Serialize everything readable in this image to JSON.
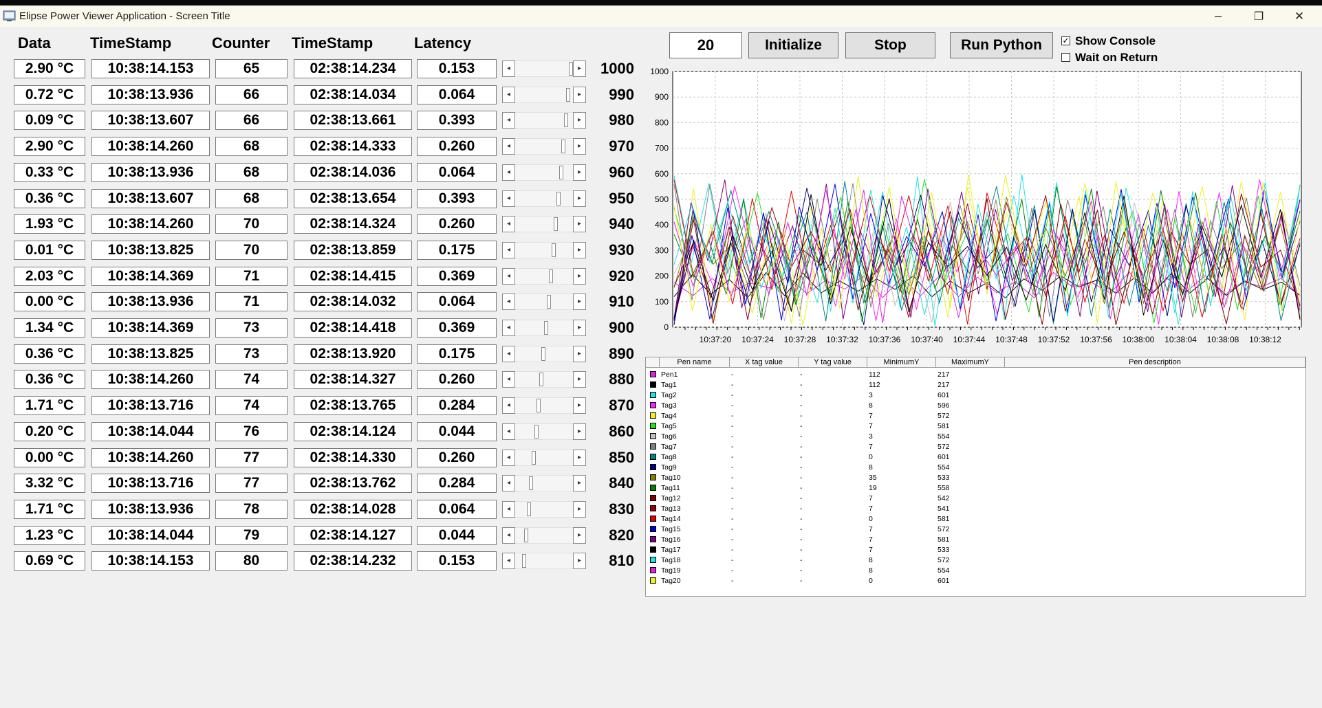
{
  "window": {
    "title": "Elipse Power Viewer Application - Screen Title",
    "minimize_glyph": "–",
    "restore_glyph": "❐",
    "close_glyph": "✕"
  },
  "columns": {
    "data": "Data",
    "timestamp1": "TimeStamp",
    "counter": "Counter",
    "timestamp2": "TimeStamp",
    "latency": "Latency"
  },
  "rows": [
    {
      "data": "2.90 °C",
      "ts1": "10:38:14.153",
      "counter": "65",
      "ts2": "02:38:14.234",
      "latency": "0.153",
      "value": "1000",
      "scroll": 1.0
    },
    {
      "data": "0.72 °C",
      "ts1": "10:38:13.936",
      "counter": "66",
      "ts2": "02:38:14.034",
      "latency": "0.064",
      "value": "990",
      "scroll": 0.99
    },
    {
      "data": "0.09 °C",
      "ts1": "10:38:13.607",
      "counter": "66",
      "ts2": "02:38:13.661",
      "latency": "0.393",
      "value": "980",
      "scroll": 0.98
    },
    {
      "data": "2.90 °C",
      "ts1": "10:38:14.260",
      "counter": "68",
      "ts2": "02:38:14.333",
      "latency": "0.260",
      "value": "970",
      "scroll": 0.97
    },
    {
      "data": "0.33 °C",
      "ts1": "10:38:13.936",
      "counter": "68",
      "ts2": "02:38:14.036",
      "latency": "0.064",
      "value": "960",
      "scroll": 0.96
    },
    {
      "data": "0.36 °C",
      "ts1": "10:38:13.607",
      "counter": "68",
      "ts2": "02:38:13.654",
      "latency": "0.393",
      "value": "950",
      "scroll": 0.95
    },
    {
      "data": "1.93 °C",
      "ts1": "10:38:14.260",
      "counter": "70",
      "ts2": "02:38:14.324",
      "latency": "0.260",
      "value": "940",
      "scroll": 0.94
    },
    {
      "data": "0.01 °C",
      "ts1": "10:38:13.825",
      "counter": "70",
      "ts2": "02:38:13.859",
      "latency": "0.175",
      "value": "930",
      "scroll": 0.93
    },
    {
      "data": "2.03 °C",
      "ts1": "10:38:14.369",
      "counter": "71",
      "ts2": "02:38:14.415",
      "latency": "0.369",
      "value": "920",
      "scroll": 0.92
    },
    {
      "data": "0.00 °C",
      "ts1": "10:38:13.936",
      "counter": "71",
      "ts2": "02:38:14.032",
      "latency": "0.064",
      "value": "910",
      "scroll": 0.91
    },
    {
      "data": "1.34 °C",
      "ts1": "10:38:14.369",
      "counter": "73",
      "ts2": "02:38:14.418",
      "latency": "0.369",
      "value": "900",
      "scroll": 0.9
    },
    {
      "data": "0.36 °C",
      "ts1": "10:38:13.825",
      "counter": "73",
      "ts2": "02:38:13.920",
      "latency": "0.175",
      "value": "890",
      "scroll": 0.89
    },
    {
      "data": "0.36 °C",
      "ts1": "10:38:14.260",
      "counter": "74",
      "ts2": "02:38:14.327",
      "latency": "0.260",
      "value": "880",
      "scroll": 0.88
    },
    {
      "data": "1.71 °C",
      "ts1": "10:38:13.716",
      "counter": "74",
      "ts2": "02:38:13.765",
      "latency": "0.284",
      "value": "870",
      "scroll": 0.87
    },
    {
      "data": "0.20 °C",
      "ts1": "10:38:14.044",
      "counter": "76",
      "ts2": "02:38:14.124",
      "latency": "0.044",
      "value": "860",
      "scroll": 0.86
    },
    {
      "data": "0.00 °C",
      "ts1": "10:38:14.260",
      "counter": "77",
      "ts2": "02:38:14.330",
      "latency": "0.260",
      "value": "850",
      "scroll": 0.85
    },
    {
      "data": "3.32 °C",
      "ts1": "10:38:13.716",
      "counter": "77",
      "ts2": "02:38:13.762",
      "latency": "0.284",
      "value": "840",
      "scroll": 0.84
    },
    {
      "data": "1.71 °C",
      "ts1": "10:38:13.936",
      "counter": "78",
      "ts2": "02:38:14.028",
      "latency": "0.064",
      "value": "830",
      "scroll": 0.83
    },
    {
      "data": "1.23 °C",
      "ts1": "10:38:14.044",
      "counter": "79",
      "ts2": "02:38:14.127",
      "latency": "0.044",
      "value": "820",
      "scroll": 0.82
    },
    {
      "data": "0.69 °C",
      "ts1": "10:38:14.153",
      "counter": "80",
      "ts2": "02:38:14.232",
      "latency": "0.153",
      "value": "810",
      "scroll": 0.81
    }
  ],
  "controls": {
    "count_value": "20",
    "initialize_label": "Initialize",
    "stop_label": "Stop",
    "run_python_label": "Run Python",
    "show_console_label": "Show Console",
    "show_console_checked": true,
    "wait_on_return_label": "Wait on Return",
    "wait_on_return_checked": false
  },
  "chart_data": {
    "type": "line",
    "y_ticks": [
      "0",
      "100",
      "200",
      "300",
      "400",
      "500",
      "600",
      "700",
      "800",
      "900",
      "1000"
    ],
    "ylim": [
      0,
      1000
    ],
    "x_ticks": [
      "10:37:20",
      "10:37:24",
      "10:37:28",
      "10:37:32",
      "10:37:36",
      "10:37:40",
      "10:37:44",
      "10:37:48",
      "10:37:52",
      "10:37:56",
      "10:38:00",
      "10:38:04",
      "10:38:08",
      "10:38:12"
    ],
    "grid": true,
    "series": [
      {
        "name": "Pen1",
        "color": "#e020e0",
        "min": 112,
        "max": 217
      },
      {
        "name": "Tag1",
        "color": "#000000",
        "min": 112,
        "max": 217
      },
      {
        "name": "Tag2",
        "color": "#20e0e0",
        "min": 3,
        "max": 601
      },
      {
        "name": "Tag3",
        "color": "#ff20ff",
        "min": 8,
        "max": 596
      },
      {
        "name": "Tag4",
        "color": "#f0f020",
        "min": 7,
        "max": 572
      },
      {
        "name": "Tag5",
        "color": "#20e020",
        "min": 7,
        "max": 581
      },
      {
        "name": "Tag6",
        "color": "#c0c0c0",
        "min": 3,
        "max": 554
      },
      {
        "name": "Tag7",
        "color": "#808080",
        "min": 7,
        "max": 572
      },
      {
        "name": "Tag8",
        "color": "#008080",
        "min": 0,
        "max": 601
      },
      {
        "name": "Tag9",
        "color": "#000080",
        "min": 8,
        "max": 554
      },
      {
        "name": "Tag10",
        "color": "#808000",
        "min": 35,
        "max": 533
      },
      {
        "name": "Tag11",
        "color": "#008000",
        "min": 19,
        "max": 558
      },
      {
        "name": "Tag12",
        "color": "#800000",
        "min": 7,
        "max": 542
      },
      {
        "name": "Tag13",
        "color": "#a00000",
        "min": 7,
        "max": 541
      },
      {
        "name": "Tag14",
        "color": "#e00000",
        "min": 0,
        "max": 581
      },
      {
        "name": "Tag15",
        "color": "#0000e0",
        "min": 7,
        "max": 572
      },
      {
        "name": "Tag16",
        "color": "#800080",
        "min": 7,
        "max": 581
      },
      {
        "name": "Tag17",
        "color": "#000000",
        "min": 7,
        "max": 533
      },
      {
        "name": "Tag18",
        "color": "#20e0e0",
        "min": 8,
        "max": 572
      },
      {
        "name": "Tag19",
        "color": "#e020e0",
        "min": 8,
        "max": 554
      },
      {
        "name": "Tag20",
        "color": "#f0f020",
        "min": 0,
        "max": 601
      }
    ]
  },
  "legend": {
    "headers": [
      "Pen name",
      "X tag value",
      "Y tag value",
      "MinimumY",
      "MaximumY",
      "Pen description"
    ],
    "placeholder": "-"
  }
}
